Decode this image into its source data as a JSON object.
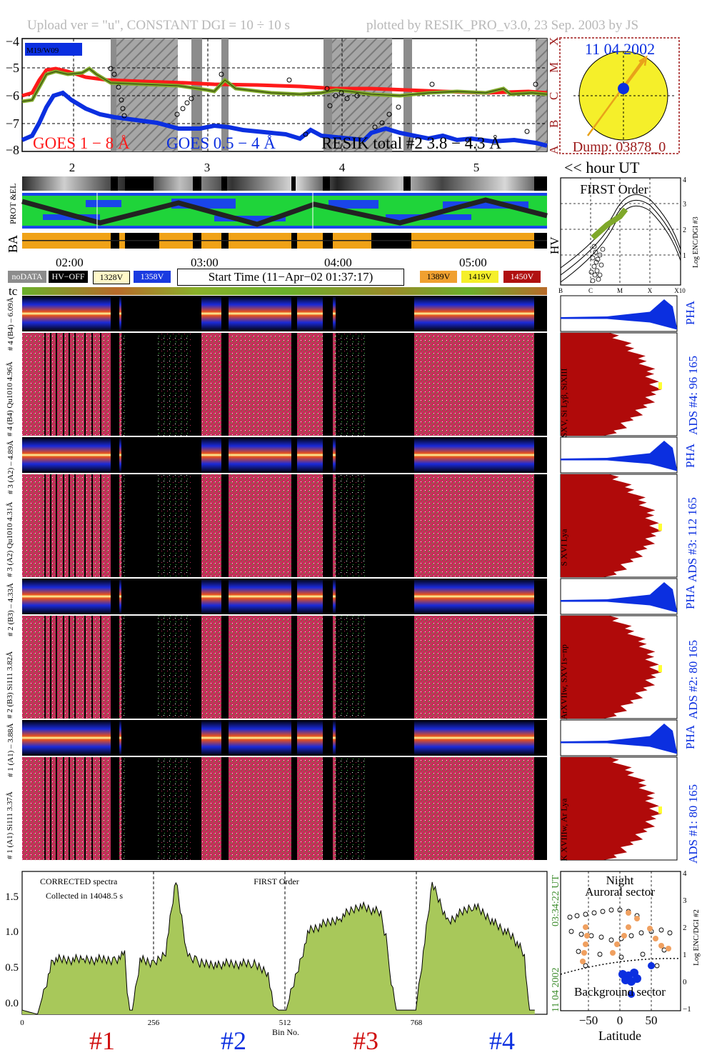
{
  "header": {
    "left": "Upload ver = \"u\", CONSTANT  DGI =  10 ÷  10 s",
    "right": "plotted by RESIK_PRO_v3.0, 23 Sep. 2003 by JS"
  },
  "goes_panel": {
    "y_ticks": [
      "−4",
      "−5",
      "−6",
      "−7",
      "−8"
    ],
    "class_labels": [
      "X",
      "M",
      "C",
      "B",
      "A"
    ],
    "legend_1": "GOES 1 − 8 Å",
    "legend_2": "GOES 0.5 − 4 Å",
    "legend_3": "RESIK total #2  3.8 − 4.3 Å",
    "inset_label": "M19/W09",
    "hour_ticks": [
      "2",
      "3",
      "4",
      "5"
    ],
    "hour_label": "<< hour UT",
    "colors": {
      "goes_long": "#ff1a1a",
      "goes_short": "#0b2fe0",
      "resik_total": "#7fa82a"
    }
  },
  "sun_panel": {
    "date": "11 04 2002",
    "dump": "Dump: 03878_0"
  },
  "bars": {
    "left_label_1": "PROT  &EL",
    "left_label_2": "BA",
    "right_label": "HV"
  },
  "first_order_panel": {
    "title": "FIRST Order",
    "x_ticks": [
      "B",
      "C",
      "M",
      "X",
      "X10"
    ],
    "y_ticks": [
      "4",
      "3",
      "2",
      "1",
      "0",
      "−1"
    ],
    "ylabel": "Log ENC/DGI #3"
  },
  "time_row": {
    "times": [
      "02:00",
      "03:00",
      "04:00",
      "05:00"
    ]
  },
  "legend_row": {
    "nodata": "noDATA",
    "hvoff": "HV−OFF",
    "v1328": "1328V",
    "v1358": "1358V",
    "start_time": "Start Time (11−Apr−02 01:37:17)",
    "v1389": "1389V",
    "v1419": "1419V",
    "v1450": "1450V",
    "tc": "tc"
  },
  "crystals": [
    {
      "pha_label": "# 4 (B4) – 6.09Å",
      "spec_label": "# 4 (B4) Qu1010 4.96Å",
      "lines": "SXV, Si Lyβ, SiXIII",
      "ads": "ADS #4:   96 165",
      "pha": "PHA"
    },
    {
      "pha_label": "# 3 (A2) – 4.89Å",
      "spec_label": "# 3 (A2) Qu1010  4.31Å",
      "lines": "S XVI Lya",
      "ads": "ADS #3:   112 165",
      "pha": "PHA"
    },
    {
      "pha_label": "# 2 (B3) – 4.33Å",
      "spec_label": "# 2 (B3) Si111  3.82Å",
      "lines": "ArXVIIw, SXV1s−np",
      "ads": "ADS #2:   80 165",
      "pha": "PHA"
    },
    {
      "pha_label": "# 1 (A1) – 3.88Å",
      "spec_label": "# 1 (A1) Si111  3.37Å",
      "lines": "K XVIIIw, Ar Lya",
      "ads": "ADS #1:   80 165",
      "pha": "PHA"
    }
  ],
  "bottom_panel": {
    "note_1": "CORRECTED spectra",
    "note_2": "Collected in 14048.5 s",
    "title": "FIRST Order",
    "y_ticks": [
      "1.5",
      "1.0",
      "0.5",
      "0.0"
    ],
    "x_ticks": [
      "0",
      "256",
      "512",
      "768"
    ],
    "xlabel": "Bin No.",
    "side_time": "03:34:22 UT",
    "side_date": "11 04 2002",
    "crystal_labels": [
      "#1",
      "#2",
      "#3",
      "#4"
    ]
  },
  "latitude_panel": {
    "title_1": "Night",
    "title_2": "Auroral sector",
    "bottom": "Background sector",
    "x_ticks": [
      "−50",
      "0",
      "50"
    ],
    "xlabel": "Latitude",
    "y_ticks": [
      "4",
      "3",
      "2",
      "1",
      "0",
      "−1"
    ],
    "ylabel": "Log ENC/DGI #2"
  },
  "chart_data": {
    "type": "line",
    "title": "FIRST Order",
    "xlabel": "Bin No.",
    "xlim": [
      0,
      1024
    ],
    "ylim": [
      0,
      1.7
    ],
    "series": [
      {
        "name": "",
        "x": [
          0,
          30,
          60,
          120,
          180,
          200,
          205,
          210,
          215,
          230,
          256,
          280,
          300,
          320,
          330,
          340,
          350,
          380,
          450,
          480,
          490,
          500,
          515,
          560,
          620,
          660,
          700,
          710,
          720,
          730,
          768,
          800,
          830,
          880,
          920,
          960,
          980,
          985,
          990,
          1000
        ],
        "y": [
          0.05,
          0.0,
          0.65,
          0.65,
          0.65,
          0.7,
          0.3,
          0.05,
          0.05,
          0.65,
          0.6,
          0.75,
          1.6,
          0.8,
          0.65,
          0.65,
          0.6,
          0.6,
          0.6,
          0.5,
          0.1,
          0.05,
          0.05,
          1.0,
          1.15,
          1.3,
          1.2,
          0.9,
          0.4,
          0.05,
          0.05,
          1.55,
          1.1,
          1.3,
          1.1,
          0.9,
          0.7,
          0.3,
          0.05,
          0.05
        ]
      }
    ]
  }
}
